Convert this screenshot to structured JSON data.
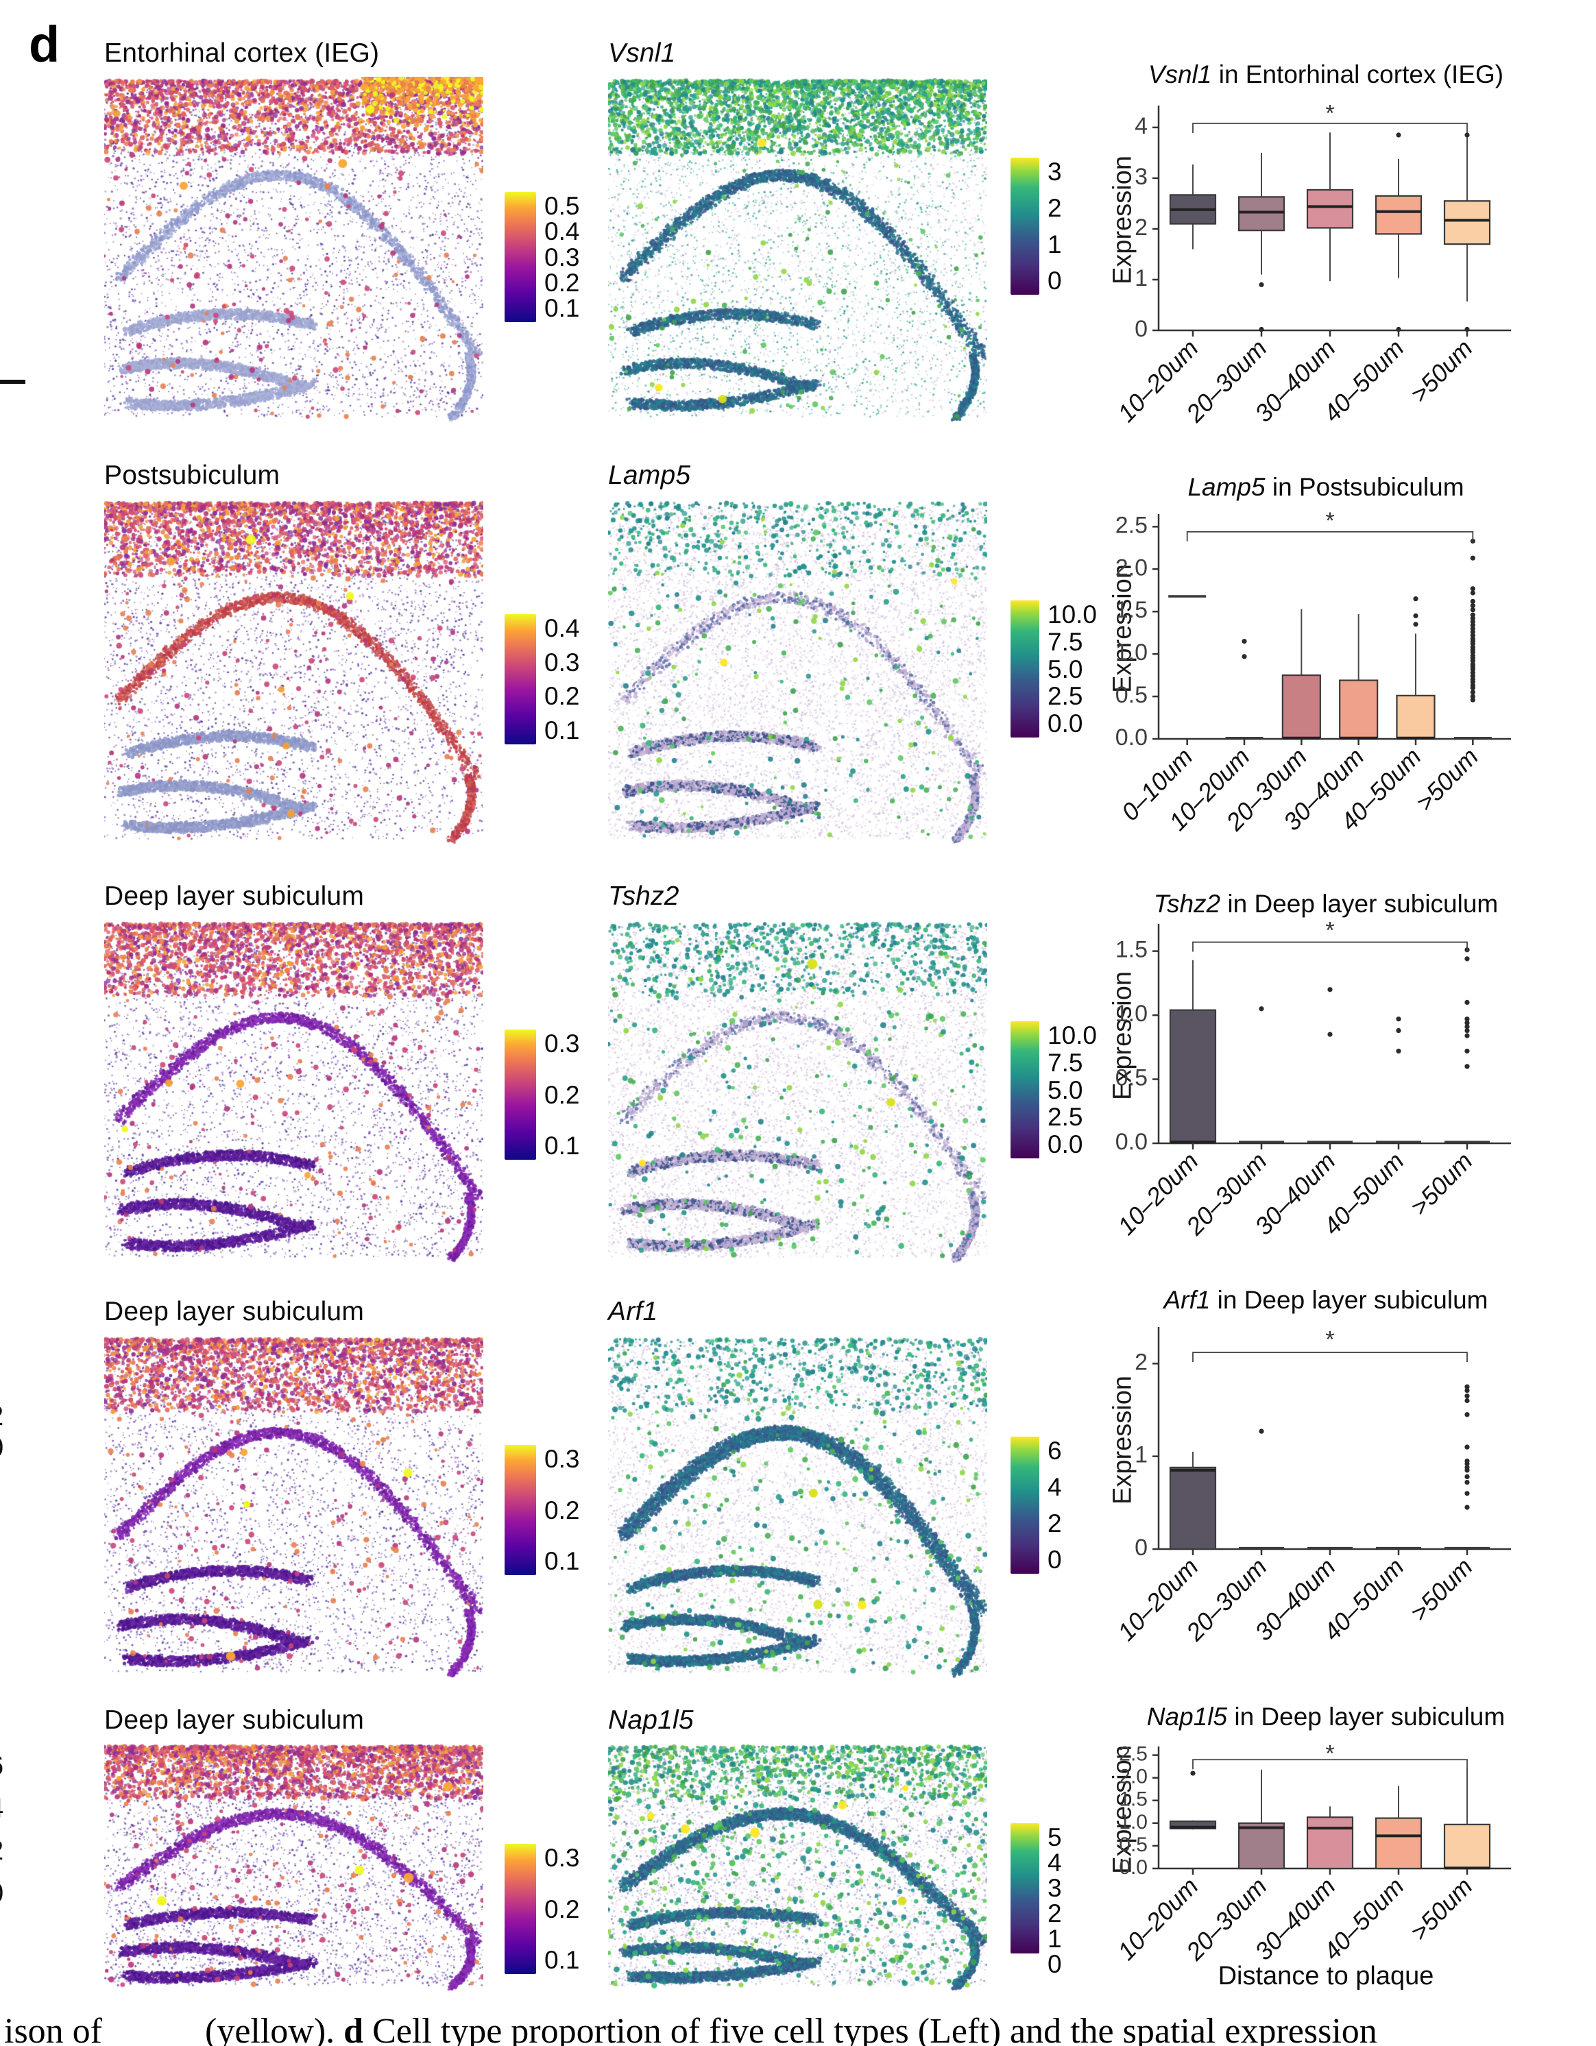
{
  "figure": {
    "panel_label": "d"
  },
  "rows": [
    {
      "left": {
        "title": "Entorhinal cortex (IEG)",
        "colorbar_labels": [
          "0.5",
          "0.4",
          "0.3",
          "0.2",
          "0.1"
        ],
        "colormap": "plasma"
      },
      "mid": {
        "title": "Vsnl1",
        "colorbar_labels": [
          "3",
          "2",
          "1",
          "0"
        ],
        "colormap": "viridis"
      }
    },
    {
      "left": {
        "title": "Postsubiculum",
        "colorbar_labels": [
          "0.4",
          "0.3",
          "0.2",
          "0.1"
        ],
        "colormap": "plasma"
      },
      "mid": {
        "title": "Lamp5",
        "colorbar_labels": [
          "10.0",
          "7.5",
          "5.0",
          "2.5",
          "0.0"
        ],
        "colormap": "viridis"
      }
    },
    {
      "left": {
        "title": "Deep layer subiculum",
        "colorbar_labels": [
          "0.3",
          "0.2",
          "0.1"
        ],
        "colormap": "plasma"
      },
      "mid": {
        "title": "Tshz2",
        "colorbar_labels": [
          "10.0",
          "7.5",
          "5.0",
          "2.5",
          "0.0"
        ],
        "colormap": "viridis"
      }
    },
    {
      "left": {
        "title": "Deep layer subiculum",
        "colorbar_labels": [
          "0.3",
          "0.2",
          "0.1"
        ],
        "colormap": "plasma"
      },
      "mid": {
        "title": "Arf1",
        "colorbar_labels": [
          "6",
          "4",
          "2",
          "0"
        ],
        "colormap": "viridis"
      }
    },
    {
      "left": {
        "title": "Deep layer subiculum",
        "colorbar_labels": [
          "0.3",
          "0.2",
          "0.1"
        ],
        "colormap": "plasma"
      },
      "mid": {
        "title": "Nap1l5",
        "colorbar_labels": [
          "5",
          "4",
          "3",
          "2",
          "1",
          "0"
        ],
        "colormap": "viridis"
      }
    }
  ],
  "chart_data": [
    {
      "type": "box",
      "gene": "Vsnl1",
      "title_rest": " in Entorhinal cortex (IEG)",
      "ylabel": "Expression",
      "xlabel": "",
      "categories": [
        "10–20um",
        "20–30um",
        "30–40um",
        "40–50um",
        ">50um"
      ],
      "ylim": [
        0,
        4.35
      ],
      "ytick_vals": [
        0,
        1,
        2,
        3,
        4
      ],
      "ytick_labels": [
        "0",
        "1",
        "2",
        "3",
        "4"
      ],
      "bracket": {
        "from": 0,
        "to": 4,
        "y": 4.08,
        "star": "*",
        "star_y": 4.26
      },
      "colors": [
        "#5b5563",
        "#a07e8a",
        "#d8909a",
        "#f4a98f",
        "#fbcfa6"
      ],
      "stats": [
        {
          "whislo": 1.6,
          "q1": 2.1,
          "med": 2.38,
          "q3": 2.67,
          "whishi": 3.27,
          "outliers": []
        },
        {
          "whislo": 1.1,
          "q1": 1.97,
          "med": 2.33,
          "q3": 2.63,
          "whishi": 3.5,
          "outliers": [
            0.9,
            0.02
          ]
        },
        {
          "whislo": 0.97,
          "q1": 2.02,
          "med": 2.44,
          "q3": 2.77,
          "whishi": 3.9,
          "outliers": []
        },
        {
          "whislo": 1.03,
          "q1": 1.9,
          "med": 2.34,
          "q3": 2.65,
          "whishi": 3.38,
          "outliers": [
            3.85,
            0.02
          ]
        },
        {
          "whislo": 0.57,
          "q1": 1.7,
          "med": 2.17,
          "q3": 2.55,
          "whishi": 3.9,
          "outliers": [
            3.85,
            0.02
          ]
        }
      ]
    },
    {
      "type": "box",
      "gene": "Lamp5",
      "title_rest": " in Postsubiculum",
      "ylabel": "Expression",
      "xlabel": "",
      "categories": [
        "0–10um",
        "10–20um",
        "20–30um",
        "30–40um",
        "40–50um",
        ">50um"
      ],
      "ylim": [
        0,
        2.6
      ],
      "ytick_vals": [
        0,
        0.5,
        1.0,
        1.5,
        2.0,
        2.5
      ],
      "ytick_labels": [
        "0.0",
        "0.5",
        "1.0",
        "1.5",
        "2.0",
        "2.5"
      ],
      "bracket": {
        "from": 0,
        "to": 5,
        "y": 2.44,
        "star": "*",
        "star_y": 2.56
      },
      "colors": [
        "#5b5563",
        "#8f7080",
        "#c98084",
        "#efa28b",
        "#f9c9a0",
        "#fddcb2"
      ],
      "stats": [
        {
          "line_only": true,
          "med": 1.68,
          "outliers": []
        },
        {
          "line_only": true,
          "med": 0.01,
          "outliers": [
            0.97,
            1.15
          ]
        },
        {
          "whislo": 0,
          "q1": 0,
          "med": 0.01,
          "q3": 0.75,
          "whishi": 1.53,
          "outliers": []
        },
        {
          "whislo": 0,
          "q1": 0,
          "med": 0.01,
          "q3": 0.69,
          "whishi": 1.47,
          "outliers": []
        },
        {
          "whislo": 0,
          "q1": 0,
          "med": 0.01,
          "q3": 0.51,
          "whishi": 1.24,
          "outliers": [
            1.35,
            1.45,
            1.65
          ]
        },
        {
          "line_only": true,
          "med": 0.01,
          "outliers": [
            0.46,
            0.5,
            0.55,
            0.6,
            0.63,
            0.67,
            0.7,
            0.74,
            0.78,
            0.82,
            0.85,
            0.88,
            0.92,
            0.95,
            0.98,
            1.02,
            1.05,
            1.08,
            1.12,
            1.15,
            1.18,
            1.22,
            1.26,
            1.3,
            1.34,
            1.38,
            1.42,
            1.46,
            1.52,
            1.57,
            1.62,
            1.72,
            1.77,
            2.13,
            2.33
          ]
        }
      ]
    },
    {
      "type": "box",
      "gene": "Tshz2",
      "title_rest": " in Deep layer subiculum",
      "ylabel": "Expression",
      "xlabel": "",
      "categories": [
        "10–20um",
        "20–30um",
        "30–40um",
        "40–50um",
        ">50um"
      ],
      "ylim": [
        0,
        1.68
      ],
      "ytick_vals": [
        0,
        0.5,
        1.0,
        1.5
      ],
      "ytick_labels": [
        "0.0",
        "0.5",
        "1.0",
        "1.5"
      ],
      "bracket": {
        "from": 0,
        "to": 4,
        "y": 1.57,
        "star": "*",
        "star_y": 1.655
      },
      "colors": [
        "#5b5563",
        "#a07e8a",
        "#d8909a",
        "#f4a98f",
        "#fbcfa6"
      ],
      "stats": [
        {
          "whislo": 0,
          "q1": 0,
          "med": 0.01,
          "q3": 1.04,
          "whishi": 1.43,
          "outliers": []
        },
        {
          "line_only": true,
          "med": 0.01,
          "outliers": [
            1.05
          ]
        },
        {
          "line_only": true,
          "med": 0.01,
          "outliers": [
            0.85,
            1.2
          ]
        },
        {
          "line_only": true,
          "med": 0.01,
          "outliers": [
            0.72,
            0.88,
            0.97
          ]
        },
        {
          "line_only": true,
          "med": 0.01,
          "outliers": [
            0.6,
            0.72,
            0.84,
            0.88,
            0.91,
            0.94,
            0.97,
            1.1,
            1.44,
            1.51
          ]
        }
      ]
    },
    {
      "type": "box",
      "gene": "Arf1",
      "title_rest": " in Deep layer subiculum",
      "ylabel": "Expression",
      "xlabel": "",
      "categories": [
        "10–20um",
        "20–30um",
        "30–40um",
        "40–50um",
        ">50um"
      ],
      "ylim": [
        0,
        2.35
      ],
      "ytick_vals": [
        0,
        1,
        2
      ],
      "ytick_labels": [
        "0",
        "1",
        "2"
      ],
      "bracket": {
        "from": 0,
        "to": 4,
        "y": 2.12,
        "star": "*",
        "star_y": 2.25
      },
      "colors": [
        "#5b5563",
        "#a07e8a",
        "#d8909a",
        "#f4a98f",
        "#fbcfa6"
      ],
      "stats": [
        {
          "whislo": 0,
          "q1": 0,
          "med": 0.85,
          "q3": 0.88,
          "whishi": 1.05,
          "outliers": []
        },
        {
          "line_only": true,
          "med": 0.01,
          "outliers": [
            1.27
          ]
        },
        {
          "line_only": true,
          "med": 0.01,
          "outliers": []
        },
        {
          "line_only": true,
          "med": 0.01,
          "outliers": []
        },
        {
          "line_only": true,
          "med": 0.01,
          "outliers": [
            0.45,
            0.6,
            0.72,
            0.78,
            0.85,
            0.88,
            0.92,
            0.95,
            1.1,
            1.45,
            1.6,
            1.65,
            1.71,
            1.75
          ]
        }
      ]
    },
    {
      "type": "box",
      "gene": "Nap1l5",
      "title_rest": " in Deep layer subiculum",
      "ylabel": "Expression",
      "xlabel": "Distance to plaque",
      "categories": [
        "10–20um",
        "20–30um",
        "30–40um",
        "40–50um",
        ">50um"
      ],
      "ylim": [
        0,
        2.6
      ],
      "ytick_vals": [
        0,
        0.5,
        1.0,
        1.5,
        2.0,
        2.5
      ],
      "ytick_labels": [
        "0.0",
        "0.5",
        "1.0",
        "1.5",
        "2.0",
        "2.5"
      ],
      "bracket": {
        "from": 0,
        "to": 4,
        "y": 2.4,
        "star": "*",
        "star_y": 2.52
      },
      "colors": [
        "#5b5563",
        "#a07e8a",
        "#d8909a",
        "#f4a98f",
        "#fbcfa6"
      ],
      "stats": [
        {
          "whislo": 0.86,
          "q1": 0.88,
          "med": 0.91,
          "q3": 1.04,
          "whishi": 1.06,
          "outliers": [
            2.1
          ]
        },
        {
          "whislo": 0,
          "q1": 0,
          "med": 0.9,
          "q3": 1.0,
          "whishi": 2.18,
          "outliers": []
        },
        {
          "whislo": 0,
          "q1": 0,
          "med": 0.89,
          "q3": 1.13,
          "whishi": 1.37,
          "outliers": []
        },
        {
          "whislo": 0,
          "q1": 0,
          "med": 0.72,
          "q3": 1.11,
          "whishi": 1.82,
          "outliers": []
        },
        {
          "whislo": 0,
          "q1": 0,
          "med": 0.01,
          "q3": 0.97,
          "whishi": 2.2,
          "outliers": []
        }
      ]
    }
  ],
  "caption": {
    "part1": "ison of",
    "part2": "(yellow).",
    "bold": "d",
    "part3": "Cell type proportion of five cell types (Left) and the spatial expression"
  },
  "edge_fragments": {
    "upper": [
      "2",
      "0"
    ],
    "lower": [
      "6",
      "4",
      "2",
      "0"
    ]
  }
}
